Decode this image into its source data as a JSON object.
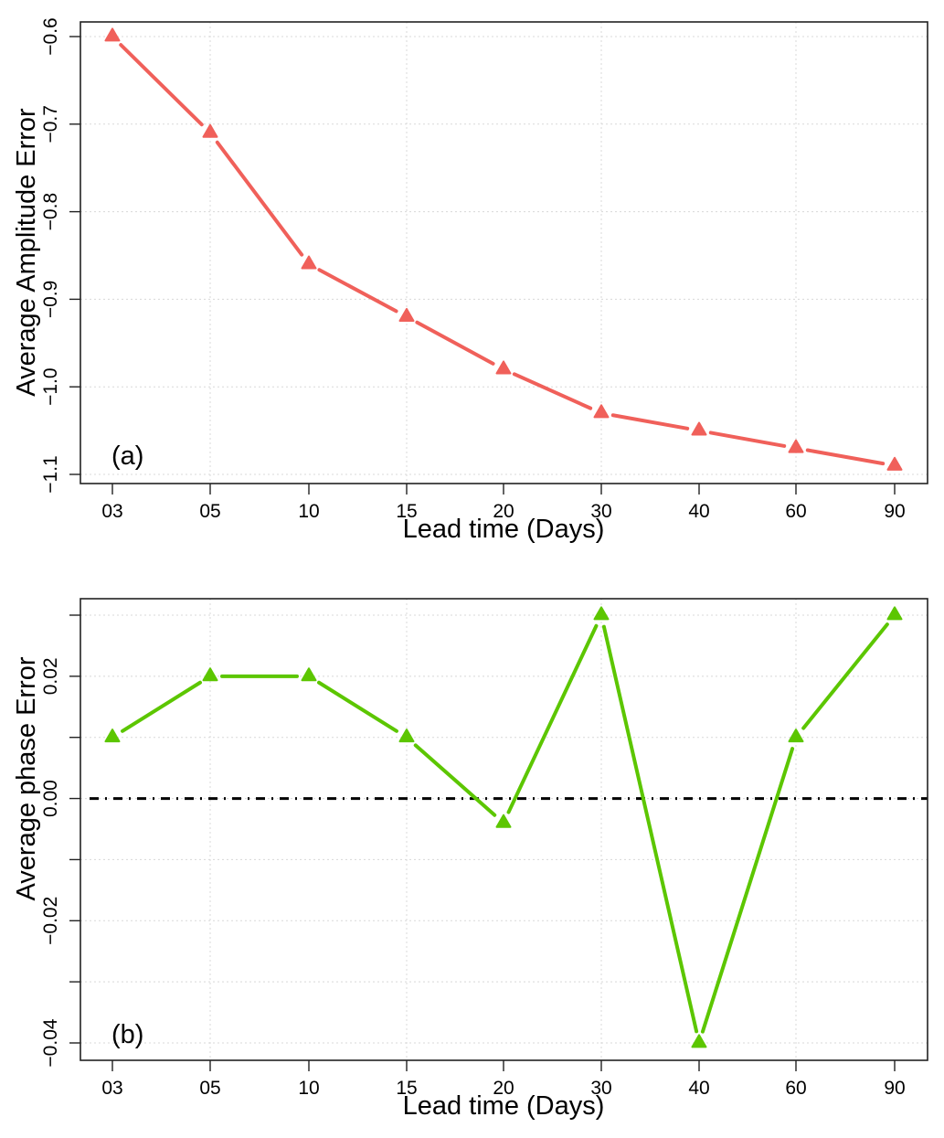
{
  "chart_data": [
    {
      "type": "line",
      "panel_label": "(a)",
      "xlabel": "Lead time (Days)",
      "ylabel": "Average Amplitude Error",
      "categories": [
        "03",
        "05",
        "10",
        "15",
        "20",
        "30",
        "40",
        "60",
        "90"
      ],
      "series": [
        {
          "name": "Average Amplitude Error",
          "color": "#f0605a",
          "marker": "triangle",
          "values": [
            -0.6,
            -0.71,
            -0.86,
            -0.92,
            -0.98,
            -1.03,
            -1.05,
            -1.07,
            -1.09
          ]
        }
      ],
      "yticks": [
        -0.6,
        -0.7,
        -0.8,
        -0.9,
        -1.0,
        -1.1
      ],
      "ytick_labels": [
        "−0.6",
        "−0.7",
        "−0.8",
        "−0.9",
        "−1.0",
        "−1.1"
      ],
      "ylim": [
        -1.1,
        -0.6
      ],
      "grid": true,
      "reference_line": null
    },
    {
      "type": "line",
      "panel_label": "(b)",
      "xlabel": "Lead time (Days)",
      "ylabel": "Average phase Error",
      "categories": [
        "03",
        "05",
        "10",
        "15",
        "20",
        "30",
        "40",
        "60",
        "90"
      ],
      "series": [
        {
          "name": "Average phase Error",
          "color": "#5cc600",
          "marker": "triangle",
          "values": [
            0.01,
            0.02,
            0.02,
            0.01,
            -0.004,
            0.03,
            -0.04,
            0.01,
            0.03
          ]
        }
      ],
      "yticks": [
        0.03,
        0.02,
        0.01,
        0.0,
        -0.01,
        -0.02,
        -0.03,
        -0.04
      ],
      "ytick_labels": [
        "",
        "0.02",
        "",
        "0.00",
        "",
        "−0.02",
        "",
        "−0.04"
      ],
      "ylim": [
        -0.04,
        0.03
      ],
      "grid": true,
      "reference_line": {
        "y": 0.0,
        "style": "dash-dot",
        "color": "#000000"
      }
    }
  ]
}
